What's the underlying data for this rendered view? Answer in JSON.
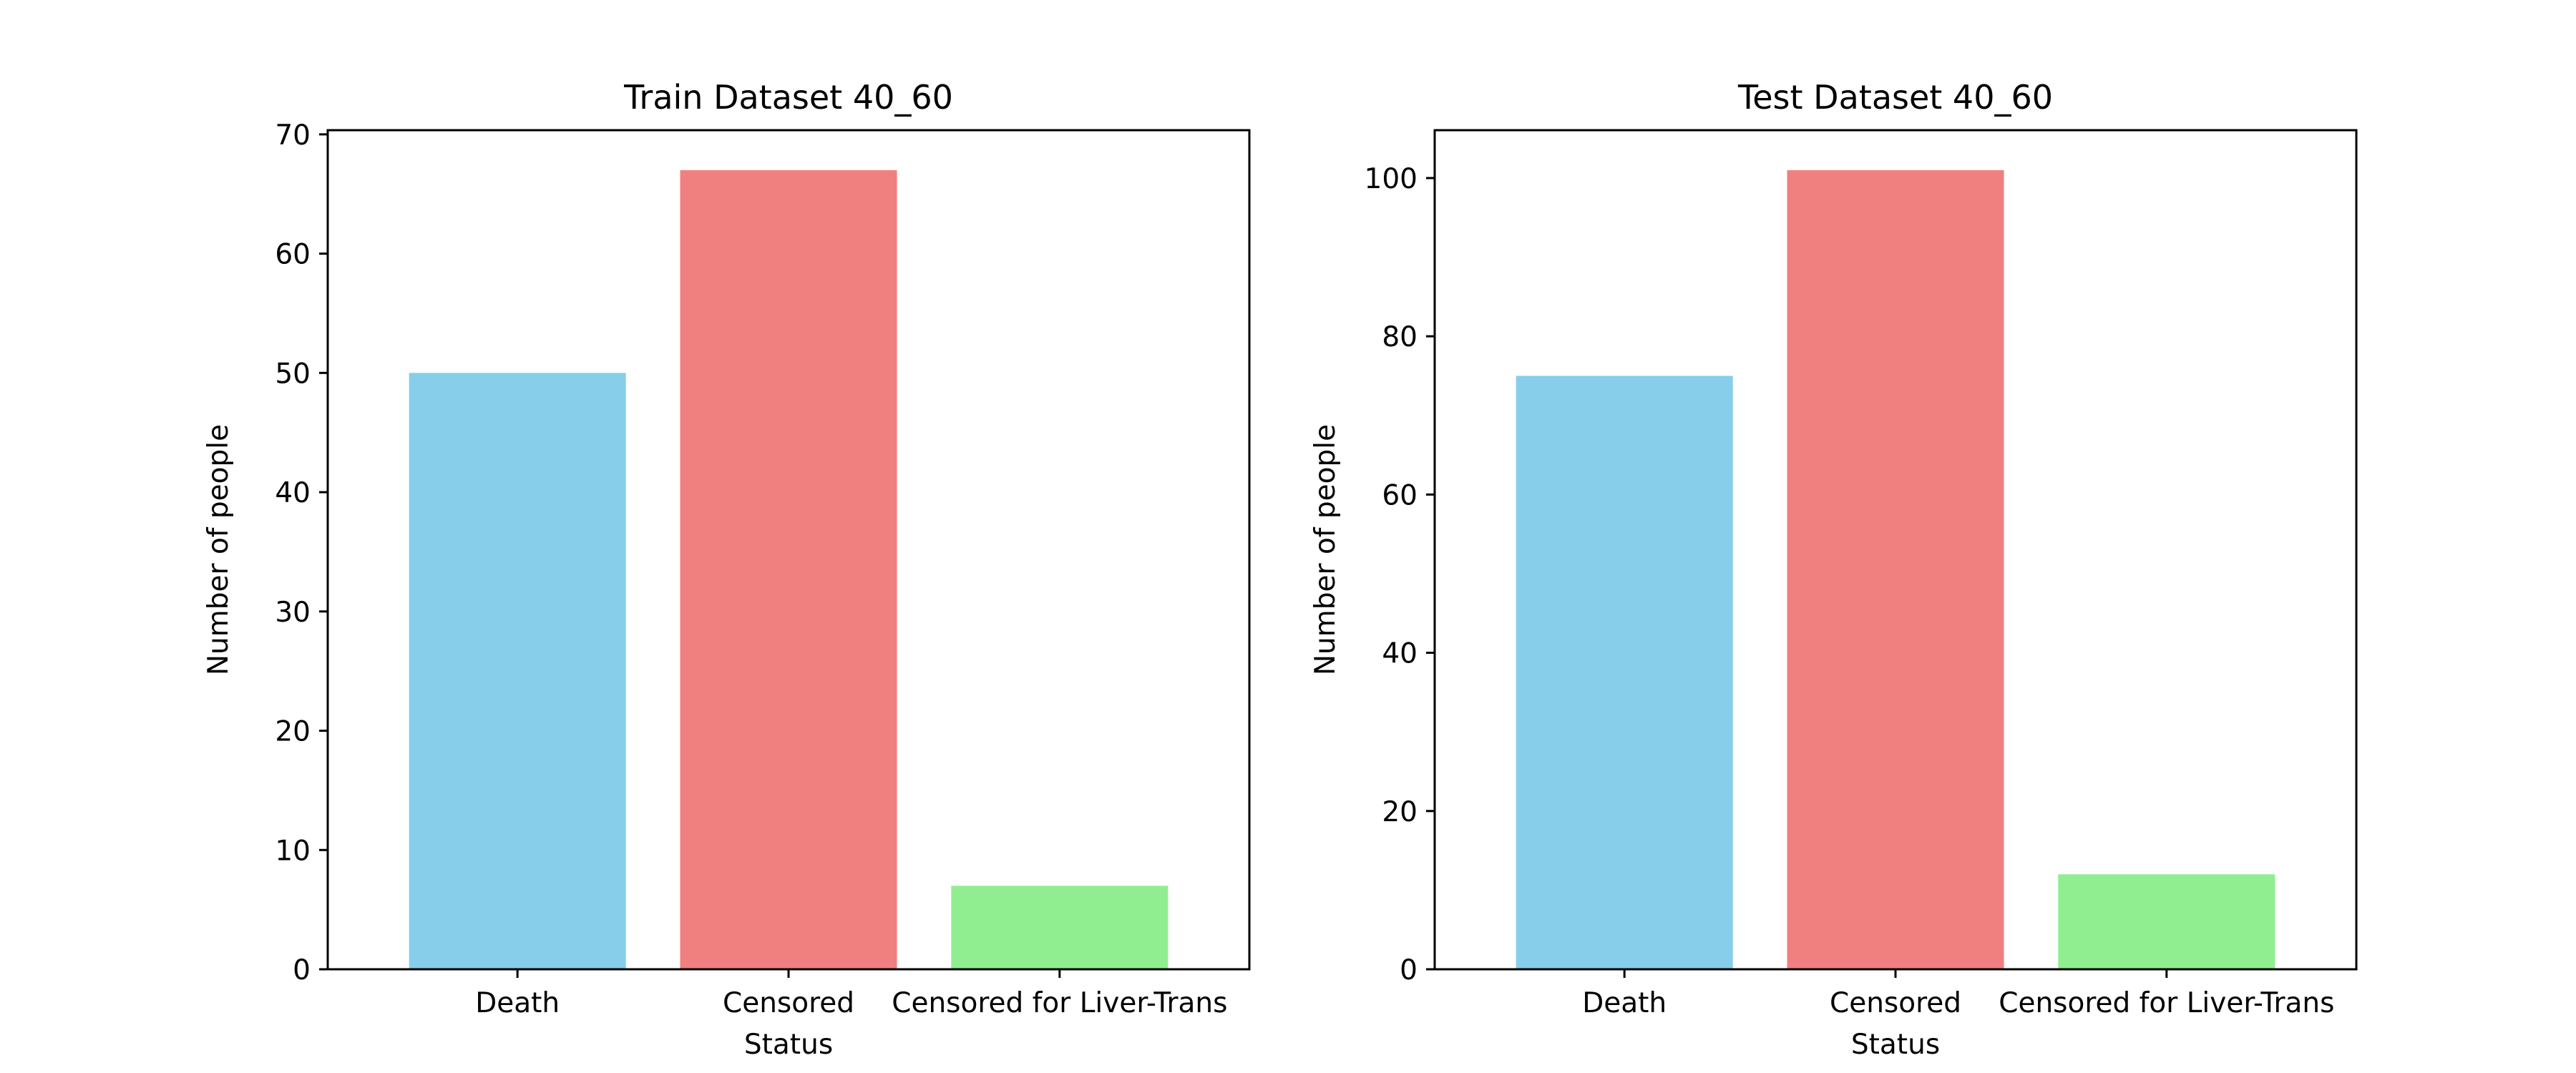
{
  "chart_data": [
    {
      "type": "bar",
      "title": "Train Dataset 40_60",
      "xlabel": "Status",
      "ylabel": "Number of people",
      "categories": [
        "Death",
        "Censored",
        "Censored for Liver-Trans"
      ],
      "values": [
        50,
        67,
        7
      ],
      "colors": [
        "#87ceeb",
        "#f08080",
        "#90ee90"
      ],
      "ylim": [
        0,
        70.35
      ],
      "yticks": [
        0,
        10,
        20,
        30,
        40,
        50,
        60,
        70
      ],
      "grid": false
    },
    {
      "type": "bar",
      "title": "Test Dataset 40_60",
      "xlabel": "Status",
      "ylabel": "Number of people",
      "categories": [
        "Death",
        "Censored",
        "Censored for Liver-Trans"
      ],
      "values": [
        75,
        101,
        12
      ],
      "colors": [
        "#87ceeb",
        "#f08080",
        "#90ee90"
      ],
      "ylim": [
        0,
        106.05
      ],
      "yticks": [
        0,
        20,
        40,
        60,
        80,
        100
      ],
      "grid": false
    }
  ]
}
